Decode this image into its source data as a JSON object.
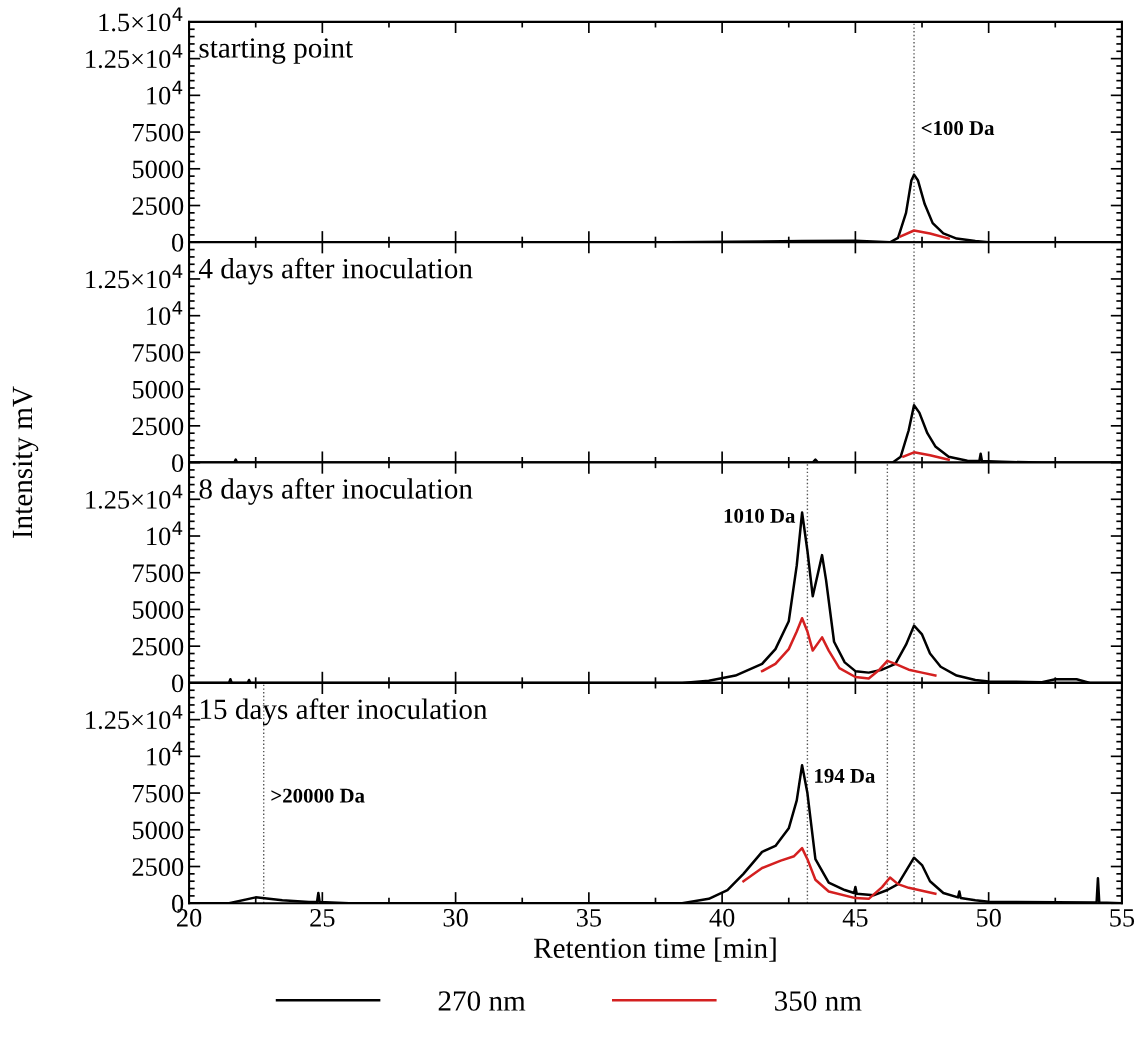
{
  "chart_data": [
    {
      "type": "line",
      "title": "starting point",
      "xlim": [
        20,
        55
      ],
      "ylim": [
        0,
        15000
      ],
      "xticks": [
        20,
        25,
        30,
        35,
        40,
        45,
        50,
        55
      ],
      "yticks": [
        0,
        2500,
        5000,
        7500,
        {
          "value": 10000,
          "label": "10$^{4}$"
        },
        {
          "value": 12500,
          "label": "1.25×10$^{4}$"
        },
        {
          "value": 15000,
          "label": "1.5×10$^{4}$"
        }
      ],
      "tick_labels": "y",
      "grid": false,
      "ref_lines": [
        {
          "axis": "x",
          "value": 47.2,
          "line_style": "dotted",
          "color": "#555555",
          "label": "<100 Da"
        }
      ],
      "series": [
        {
          "color": "#000000",
          "x": [
            20,
            38,
            43,
            45,
            46.3,
            46.6,
            46.9,
            47.1,
            47.2,
            47.35,
            47.6,
            47.9,
            48.3,
            48.8,
            49.5,
            50,
            55
          ],
          "values": [
            0,
            0,
            80,
            100,
            0,
            300,
            2000,
            4200,
            4600,
            4200,
            2600,
            1300,
            600,
            250,
            80,
            0,
            0
          ]
        },
        {
          "color": "#d42020",
          "x": [
            46.7,
            47.2,
            47.8,
            48.5
          ],
          "values": [
            400,
            800,
            600,
            250
          ]
        }
      ]
    },
    {
      "type": "line",
      "title": "4 days after inoculation",
      "xlim": [
        20,
        55
      ],
      "ylim": [
        0,
        15000
      ],
      "xticks": [
        20,
        25,
        30,
        35,
        40,
        45,
        50,
        55
      ],
      "yticks": [
        0,
        2500,
        5000,
        7500,
        {
          "value": 10000,
          "label": "10$^{4}$"
        },
        {
          "value": 12500,
          "label": "1.25×10$^{4}$"
        },
        {
          "value": 15000,
          "label": null
        }
      ],
      "tick_labels": "y",
      "grid": false,
      "ref_lines": [
        {
          "axis": "x",
          "value": 47.2,
          "line_style": "dotted",
          "color": "#555555"
        }
      ],
      "series": [
        {
          "color": "#000000",
          "x": [
            20,
            21.7,
            21.75,
            21.8,
            43.4,
            43.5,
            43.6,
            46.4,
            46.7,
            47.0,
            47.2,
            47.4,
            47.7,
            48.0,
            48.5,
            49.2,
            49.65,
            49.7,
            49.75,
            50.5,
            52,
            55
          ],
          "values": [
            0,
            0,
            200,
            0,
            0,
            200,
            0,
            0,
            400,
            2200,
            3900,
            3400,
            2000,
            1100,
            400,
            120,
            100,
            600,
            100,
            50,
            0,
            0
          ]
        },
        {
          "color": "#d42020",
          "x": [
            46.8,
            47.2,
            47.8,
            48.5
          ],
          "values": [
            400,
            700,
            500,
            200
          ]
        }
      ]
    },
    {
      "type": "line",
      "title": "8 days after inoculation",
      "xlim": [
        20,
        55
      ],
      "ylim": [
        0,
        15000
      ],
      "xticks": [
        20,
        25,
        30,
        35,
        40,
        45,
        50,
        55
      ],
      "yticks": [
        0,
        2500,
        5000,
        7500,
        {
          "value": 10000,
          "label": "10$^{4}$"
        },
        {
          "value": 12500,
          "label": "1.25×10$^{4}$"
        },
        {
          "value": 15000,
          "label": null
        }
      ],
      "tick_labels": "y",
      "grid": false,
      "ref_lines": [
        {
          "axis": "x",
          "value": 43.2,
          "line_style": "dotted",
          "color": "#555555",
          "label": "1010 Da"
        },
        {
          "axis": "x",
          "value": 46.2,
          "line_style": "dotted",
          "color": "#555555"
        },
        {
          "axis": "x",
          "value": 47.2,
          "line_style": "dotted",
          "color": "#555555"
        }
      ],
      "series": [
        {
          "color": "#000000",
          "x": [
            20,
            21.5,
            21.55,
            21.6,
            22.2,
            22.25,
            22.3,
            38.5,
            39.5,
            40.5,
            41.5,
            42,
            42.5,
            42.8,
            43.0,
            43.2,
            43.4,
            43.6,
            43.75,
            43.9,
            44.2,
            44.6,
            45,
            45.5,
            46.0,
            46.5,
            46.9,
            47.2,
            47.5,
            47.8,
            48.2,
            48.8,
            49.5,
            50,
            52,
            52.5,
            53.3,
            53.8,
            55
          ],
          "values": [
            0,
            0,
            250,
            0,
            0,
            200,
            0,
            0,
            150,
            500,
            1300,
            2300,
            4200,
            8000,
            11600,
            9000,
            5900,
            7500,
            8700,
            7000,
            2800,
            1400,
            800,
            700,
            900,
            1300,
            2600,
            3900,
            3300,
            2000,
            1100,
            500,
            200,
            100,
            50,
            250,
            250,
            0,
            0
          ]
        },
        {
          "color": "#d42020",
          "x": [
            41.5,
            42,
            42.5,
            42.8,
            43.0,
            43.2,
            43.4,
            43.75,
            44.0,
            44.4,
            45,
            45.5,
            45.9,
            46.2,
            46.5,
            47,
            47.5,
            48
          ],
          "values": [
            800,
            1300,
            2300,
            3500,
            4400,
            3500,
            2200,
            3100,
            2200,
            1000,
            400,
            300,
            900,
            1500,
            1300,
            900,
            700,
            500
          ]
        }
      ]
    },
    {
      "type": "line",
      "title": "15 days after inoculation",
      "xlabel": "Retention time [min]",
      "ylabel": "Intensity mV",
      "xlim": [
        20,
        55
      ],
      "ylim": [
        0,
        15000
      ],
      "xticks": [
        20,
        25,
        30,
        35,
        40,
        45,
        50,
        55
      ],
      "yticks": [
        0,
        2500,
        5000,
        7500,
        {
          "value": 10000,
          "label": "10$^{4}$"
        },
        {
          "value": 12500,
          "label": "1.25×10$^{4}$"
        },
        {
          "value": 15000,
          "label": null
        }
      ],
      "grid": false,
      "legend": "bottom",
      "ref_lines": [
        {
          "axis": "x",
          "value": 22.8,
          "line_style": "dotted",
          "color": "#555555",
          "label": ">20000 Da"
        },
        {
          "axis": "x",
          "value": 43.2,
          "line_style": "dotted",
          "color": "#555555"
        },
        {
          "axis": "x",
          "value": 46.2,
          "line_style": "dotted",
          "color": "#555555",
          "label": "194 Da"
        },
        {
          "axis": "x",
          "value": 47.2,
          "line_style": "dotted",
          "color": "#555555"
        }
      ],
      "series": [
        {
          "name": "270 nm",
          "color": "#000000",
          "x": [
            20,
            21.5,
            22.5,
            23.5,
            24.5,
            24.8,
            24.85,
            24.9,
            26,
            38.5,
            39.5,
            40.2,
            40.8,
            41.5,
            42,
            42.5,
            42.8,
            43.0,
            43.2,
            43.5,
            44,
            44.6,
            44.95,
            45,
            45.05,
            45.7,
            46.2,
            46.6,
            46.9,
            47.2,
            47.5,
            47.8,
            48.3,
            48.85,
            48.9,
            48.95,
            49.5,
            50,
            54.05,
            54.1,
            54.15,
            55
          ],
          "values": [
            0,
            0,
            400,
            200,
            80,
            80,
            700,
            80,
            0,
            0,
            300,
            900,
            2000,
            3500,
            3900,
            5100,
            7000,
            9400,
            7500,
            3000,
            1400,
            900,
            700,
            1100,
            650,
            550,
            900,
            1300,
            2200,
            3100,
            2600,
            1500,
            700,
            400,
            800,
            350,
            200,
            100,
            50,
            1700,
            50,
            0
          ]
        },
        {
          "name": "350 nm",
          "color": "#d42020",
          "x": [
            40.8,
            41.5,
            42.2,
            42.7,
            43.0,
            43.2,
            43.5,
            44,
            45,
            45.5,
            46.0,
            46.3,
            46.6,
            47,
            47.5,
            48
          ],
          "values": [
            1500,
            2400,
            2900,
            3200,
            3750,
            3000,
            1600,
            800,
            350,
            300,
            1100,
            1750,
            1300,
            1050,
            850,
            650
          ]
        }
      ]
    }
  ]
}
